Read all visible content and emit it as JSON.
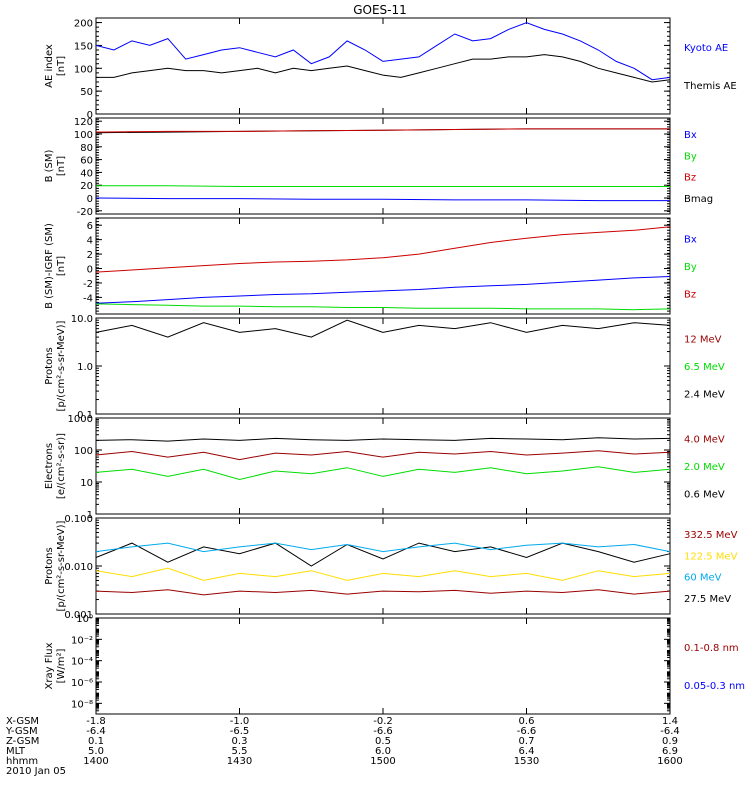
{
  "title": "GOES-11",
  "colors": {
    "black": "#000000",
    "blue": "#0000ff",
    "red": "#cc0000",
    "green": "#00dd00",
    "darkred": "#990000",
    "yellow": "#ffdd00",
    "cyan": "#00aaee",
    "frame": "#000000"
  },
  "chart_data": [
    {
      "id": "ae",
      "type": "line",
      "ylabel": "AE index",
      "yunit": "[nT]",
      "scale": "linear",
      "ylim": [
        0,
        210
      ],
      "yticks": [
        0,
        50,
        100,
        150,
        200
      ],
      "ytick_labels": [
        "0",
        "50",
        "100",
        "150",
        "200"
      ],
      "legend": [
        {
          "label": "Kyoto AE",
          "color": "blue"
        },
        {
          "label": "Themis AE",
          "color": "black"
        }
      ],
      "x": [
        -1.8,
        -1.7,
        -1.6,
        -1.5,
        -1.4,
        -1.3,
        -1.2,
        -1.1,
        -1.0,
        -0.9,
        -0.8,
        -0.7,
        -0.6,
        -0.5,
        -0.4,
        -0.3,
        -0.2,
        -0.1,
        0.0,
        0.1,
        0.2,
        0.3,
        0.4,
        0.5,
        0.6,
        0.7,
        0.8,
        0.9,
        1.0,
        1.1,
        1.2,
        1.3,
        1.4
      ],
      "series": [
        {
          "color": "blue",
          "values": [
            150,
            140,
            160,
            150,
            165,
            120,
            130,
            140,
            145,
            135,
            125,
            140,
            110,
            125,
            160,
            140,
            115,
            120,
            125,
            150,
            175,
            160,
            165,
            185,
            200,
            185,
            175,
            160,
            140,
            115,
            100,
            75,
            80
          ]
        },
        {
          "color": "black",
          "values": [
            80,
            80,
            90,
            95,
            100,
            95,
            95,
            90,
            95,
            100,
            90,
            100,
            95,
            100,
            105,
            95,
            85,
            80,
            90,
            100,
            110,
            120,
            120,
            125,
            125,
            130,
            125,
            115,
            100,
            90,
            80,
            70,
            75
          ]
        }
      ]
    },
    {
      "id": "b",
      "type": "line",
      "ylabel": "B (SM)",
      "yunit": "[nT]",
      "scale": "linear",
      "ylim": [
        -25,
        125
      ],
      "yticks": [
        -20,
        0,
        20,
        40,
        60,
        80,
        100,
        120
      ],
      "ytick_labels": [
        "-20",
        "0",
        "20",
        "40",
        "60",
        "80",
        "100",
        "120"
      ],
      "legend": [
        {
          "label": "Bx",
          "color": "blue"
        },
        {
          "label": "By",
          "color": "green"
        },
        {
          "label": "Bz",
          "color": "red"
        },
        {
          "label": "Bmag",
          "color": "black"
        }
      ],
      "x": [
        -1.8,
        -1.4,
        -1.0,
        -0.6,
        -0.2,
        0.2,
        0.6,
        1.0,
        1.4
      ],
      "series": [
        {
          "color": "black",
          "values": [
            102,
            103,
            104,
            105,
            106,
            107,
            108,
            108,
            108
          ]
        },
        {
          "color": "red",
          "values": [
            103,
            104,
            104,
            105,
            106,
            107,
            108,
            108,
            108
          ]
        },
        {
          "color": "green",
          "values": [
            19,
            19,
            18,
            18,
            18,
            18,
            18,
            18,
            18
          ]
        },
        {
          "color": "blue",
          "values": [
            0,
            -1,
            -1,
            -2,
            -2,
            -3,
            -3,
            -4,
            -4
          ]
        }
      ]
    },
    {
      "id": "bigrf",
      "type": "line",
      "ylabel": "B (SM)-IGRF (SM)",
      "yunit": "[nT]",
      "scale": "linear",
      "ylim": [
        -6.3,
        7
      ],
      "yticks": [
        -4,
        -2,
        0,
        2,
        4,
        6
      ],
      "ytick_labels": [
        "-4",
        "-2",
        "0",
        "2",
        "4",
        "6"
      ],
      "legend": [
        {
          "label": "Bx",
          "color": "blue"
        },
        {
          "label": "By",
          "color": "green"
        },
        {
          "label": "Bz",
          "color": "red"
        }
      ],
      "x": [
        -1.8,
        -1.6,
        -1.4,
        -1.2,
        -1.0,
        -0.8,
        -0.6,
        -0.4,
        -0.2,
        0.0,
        0.2,
        0.4,
        0.6,
        0.8,
        1.0,
        1.2,
        1.4
      ],
      "series": [
        {
          "color": "red",
          "values": [
            -0.5,
            -0.2,
            0.1,
            0.4,
            0.7,
            0.9,
            1.0,
            1.2,
            1.5,
            2.0,
            2.8,
            3.6,
            4.2,
            4.7,
            5.0,
            5.3,
            5.8
          ]
        },
        {
          "color": "blue",
          "values": [
            -4.8,
            -4.6,
            -4.3,
            -4.0,
            -3.8,
            -3.6,
            -3.5,
            -3.3,
            -3.1,
            -2.9,
            -2.6,
            -2.4,
            -2.2,
            -1.9,
            -1.6,
            -1.3,
            -1.1
          ]
        },
        {
          "color": "green",
          "values": [
            -4.9,
            -5.0,
            -5.1,
            -5.2,
            -5.2,
            -5.3,
            -5.3,
            -5.4,
            -5.4,
            -5.5,
            -5.5,
            -5.5,
            -5.6,
            -5.6,
            -5.6,
            -5.7,
            -5.6
          ]
        }
      ]
    },
    {
      "id": "protons_hi",
      "type": "line",
      "ylabel": "Protons",
      "yunit": "[p/(cm²-s-sr-MeV)]",
      "scale": "log",
      "ylim": [
        0.1,
        10
      ],
      "yticks": [
        0.1,
        1,
        10
      ],
      "ytick_labels": [
        "0.1",
        "1.0",
        "10.0"
      ],
      "legend": [
        {
          "label": "12 MeV",
          "color": "darkred"
        },
        {
          "label": "6.5 MeV",
          "color": "green"
        },
        {
          "label": "2.4 MeV",
          "color": "black"
        }
      ],
      "x": [
        -1.8,
        -1.6,
        -1.4,
        -1.2,
        -1.0,
        -0.8,
        -0.6,
        -0.4,
        -0.2,
        0.0,
        0.2,
        0.4,
        0.6,
        0.8,
        1.0,
        1.2,
        1.4
      ],
      "series": [
        {
          "color": "black",
          "values": [
            5,
            7,
            4,
            8,
            5,
            6,
            4,
            9,
            5,
            7,
            6,
            8,
            5,
            7,
            6,
            8,
            7
          ]
        }
      ]
    },
    {
      "id": "electrons",
      "type": "line",
      "ylabel": "Electrons",
      "yunit": "[e/(cm²-s-sr)]",
      "scale": "log",
      "ylim": [
        1,
        1000
      ],
      "yticks": [
        1,
        10,
        100,
        1000
      ],
      "ytick_labels": [
        "1",
        "10",
        "100",
        "1000"
      ],
      "legend": [
        {
          "label": "4.0 MeV",
          "color": "darkred"
        },
        {
          "label": "2.0 MeV",
          "color": "green"
        },
        {
          "label": "0.6 MeV",
          "color": "black"
        }
      ],
      "x": [
        -1.8,
        -1.6,
        -1.4,
        -1.2,
        -1.0,
        -0.8,
        -0.6,
        -0.4,
        -0.2,
        0.0,
        0.2,
        0.4,
        0.6,
        0.8,
        1.0,
        1.2,
        1.4
      ],
      "series": [
        {
          "color": "black",
          "values": [
            200,
            210,
            190,
            220,
            200,
            230,
            210,
            200,
            220,
            210,
            200,
            230,
            220,
            210,
            240,
            220,
            230
          ]
        },
        {
          "color": "darkred",
          "values": [
            70,
            90,
            60,
            85,
            50,
            80,
            70,
            90,
            60,
            85,
            75,
            90,
            70,
            80,
            95,
            75,
            85
          ]
        },
        {
          "color": "green",
          "values": [
            20,
            25,
            15,
            25,
            12,
            22,
            18,
            28,
            15,
            25,
            20,
            28,
            18,
            22,
            30,
            20,
            25
          ]
        }
      ]
    },
    {
      "id": "protons_lo",
      "type": "line",
      "ylabel": "Protons",
      "yunit": "[p/(cm²-s-sr-MeV)]",
      "scale": "log",
      "ylim": [
        0.001,
        0.1
      ],
      "yticks": [
        0.001,
        0.01,
        0.1
      ],
      "ytick_labels": [
        "0.001",
        "0.010",
        "0.100"
      ],
      "legend": [
        {
          "label": "332.5 MeV",
          "color": "darkred"
        },
        {
          "label": "122.5 MeV",
          "color": "yellow"
        },
        {
          "label": "60 MeV",
          "color": "cyan"
        },
        {
          "label": "27.5 MeV",
          "color": "black"
        }
      ],
      "x": [
        -1.8,
        -1.6,
        -1.4,
        -1.2,
        -1.0,
        -0.8,
        -0.6,
        -0.4,
        -0.2,
        0.0,
        0.2,
        0.4,
        0.6,
        0.8,
        1.0,
        1.2,
        1.4
      ],
      "series": [
        {
          "color": "black",
          "values": [
            0.015,
            0.03,
            0.012,
            0.025,
            0.018,
            0.03,
            0.01,
            0.028,
            0.014,
            0.03,
            0.02,
            0.025,
            0.015,
            0.03,
            0.02,
            0.012,
            0.018
          ]
        },
        {
          "color": "cyan",
          "values": [
            0.02,
            0.025,
            0.03,
            0.02,
            0.025,
            0.03,
            0.022,
            0.028,
            0.02,
            0.025,
            0.03,
            0.022,
            0.027,
            0.03,
            0.025,
            0.028,
            0.02
          ]
        },
        {
          "color": "yellow",
          "values": [
            0.008,
            0.006,
            0.009,
            0.005,
            0.007,
            0.006,
            0.008,
            0.005,
            0.007,
            0.006,
            0.008,
            0.006,
            0.007,
            0.005,
            0.008,
            0.006,
            0.007
          ]
        },
        {
          "color": "darkred",
          "values": [
            0.003,
            0.0028,
            0.0032,
            0.0025,
            0.003,
            0.0028,
            0.0031,
            0.0026,
            0.003,
            0.0029,
            0.0031,
            0.0027,
            0.003,
            0.0028,
            0.0032,
            0.0026,
            0.003
          ]
        }
      ]
    },
    {
      "id": "xray",
      "type": "line",
      "ylabel": "Xray Flux",
      "yunit": "[W/m²]",
      "scale": "log",
      "ylim": [
        1e-09,
        1
      ],
      "yticks": [
        1e-08,
        1e-06,
        0.0001,
        0.01,
        1
      ],
      "ytick_labels": [
        "10⁻⁸",
        "10⁻⁶",
        "10⁻⁴",
        "10⁻²",
        "10⁰"
      ],
      "legend": [
        {
          "label": "0.1-0.8 nm",
          "color": "darkred"
        },
        {
          "label": "0.05-0.3 nm",
          "color": "blue"
        }
      ],
      "x": [],
      "series": []
    }
  ],
  "xaxis": {
    "xlim": [
      -1.8,
      1.4
    ],
    "ticks": [
      -1.8,
      -1.0,
      -0.2,
      0.6,
      1.4
    ],
    "rows": [
      {
        "label": "X-GSM",
        "values": [
          "-1.8",
          "-1.0",
          "-0.2",
          "0.6",
          "1.4"
        ]
      },
      {
        "label": "Y-GSM",
        "values": [
          "-6.4",
          "-6.5",
          "-6.6",
          "-6.6",
          "-6.4"
        ]
      },
      {
        "label": "Z-GSM",
        "values": [
          "0.1",
          "0.3",
          "0.5",
          "0.7",
          "0.9"
        ]
      },
      {
        "label": "MLT",
        "values": [
          "5.0",
          "5.5",
          "6.0",
          "6.4",
          "6.9"
        ]
      },
      {
        "label": "hhmm",
        "values": [
          "1400",
          "1430",
          "1500",
          "1530",
          "1600"
        ]
      }
    ],
    "date": "2010 Jan 05"
  }
}
